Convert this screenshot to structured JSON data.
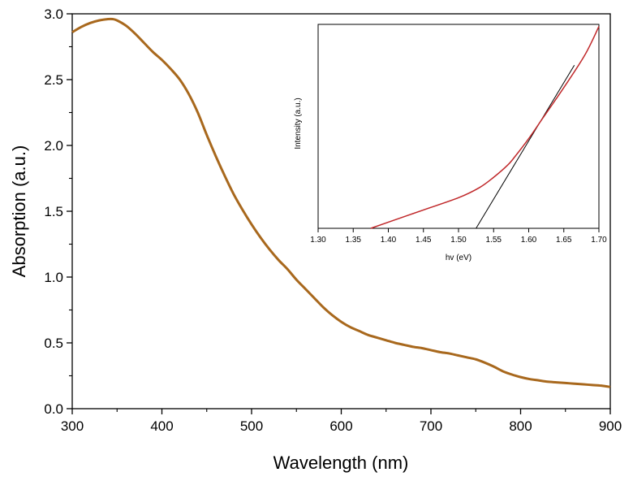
{
  "chart_data": [
    {
      "type": "line",
      "xlabel": "Wavelength (nm)",
      "ylabel": "Absorption (a.u.)",
      "xlim": [
        300,
        900
      ],
      "ylim": [
        0.0,
        3.0
      ],
      "x_ticks": [
        "300",
        "400",
        "500",
        "600",
        "700",
        "800",
        "900"
      ],
      "y_ticks": [
        "0.0",
        "0.5",
        "1.0",
        "1.5",
        "2.0",
        "2.5",
        "3.0"
      ],
      "grid": false,
      "legend": "none",
      "line_color": "#a8681d",
      "series": [
        {
          "x": [
            300,
            310,
            320,
            330,
            340,
            345,
            350,
            360,
            370,
            380,
            390,
            400,
            410,
            420,
            430,
            440,
            450,
            460,
            470,
            480,
            490,
            500,
            510,
            520,
            530,
            540,
            550,
            560,
            570,
            580,
            590,
            600,
            610,
            620,
            630,
            640,
            650,
            660,
            670,
            680,
            690,
            700,
            710,
            720,
            730,
            740,
            750,
            760,
            770,
            780,
            790,
            800,
            810,
            820,
            830,
            840,
            850,
            860,
            870,
            880,
            890,
            900
          ],
          "y": [
            2.86,
            2.9,
            2.93,
            2.95,
            2.96,
            2.96,
            2.95,
            2.91,
            2.85,
            2.78,
            2.71,
            2.65,
            2.58,
            2.5,
            2.39,
            2.25,
            2.08,
            1.92,
            1.77,
            1.63,
            1.51,
            1.4,
            1.3,
            1.21,
            1.13,
            1.06,
            0.98,
            0.91,
            0.84,
            0.77,
            0.71,
            0.66,
            0.62,
            0.59,
            0.56,
            0.54,
            0.52,
            0.5,
            0.485,
            0.47,
            0.46,
            0.445,
            0.43,
            0.42,
            0.405,
            0.39,
            0.375,
            0.35,
            0.32,
            0.285,
            0.26,
            0.24,
            0.225,
            0.215,
            0.205,
            0.2,
            0.195,
            0.19,
            0.185,
            0.18,
            0.175,
            0.165
          ]
        }
      ]
    },
    {
      "type": "line",
      "xlabel": "hv (eV)",
      "ylabel": "Intensity (a.u.)",
      "xlim": [
        1.3,
        1.7
      ],
      "ylim": [
        0,
        1
      ],
      "x_ticks": [
        "1.30",
        "1.35",
        "1.40",
        "1.45",
        "1.50",
        "1.55",
        "1.60",
        "1.65",
        "1.70"
      ],
      "y_ticks": [],
      "grid": false,
      "legend": "none",
      "line_color": "#c0282a",
      "fit_color": "#000000",
      "series": [
        {
          "x": [
            1.375,
            1.4,
            1.45,
            1.5,
            1.53,
            1.55,
            1.57,
            1.58,
            1.6,
            1.62,
            1.65,
            1.68,
            1.7
          ],
          "y": [
            0.0,
            0.03,
            0.09,
            0.15,
            0.2,
            0.25,
            0.31,
            0.35,
            0.44,
            0.54,
            0.69,
            0.85,
            0.99
          ]
        }
      ],
      "fit_line": {
        "x": [
          1.525,
          1.665
        ],
        "y": [
          0.0,
          0.8
        ]
      }
    }
  ]
}
